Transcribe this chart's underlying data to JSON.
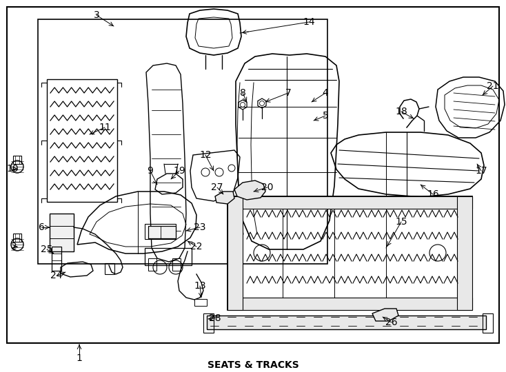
{
  "title": "SEATS & TRACKS",
  "bg_color": "#ffffff",
  "line_color": "#000000",
  "label_fontsize": 10,
  "fig_width": 7.34,
  "fig_height": 5.4
}
